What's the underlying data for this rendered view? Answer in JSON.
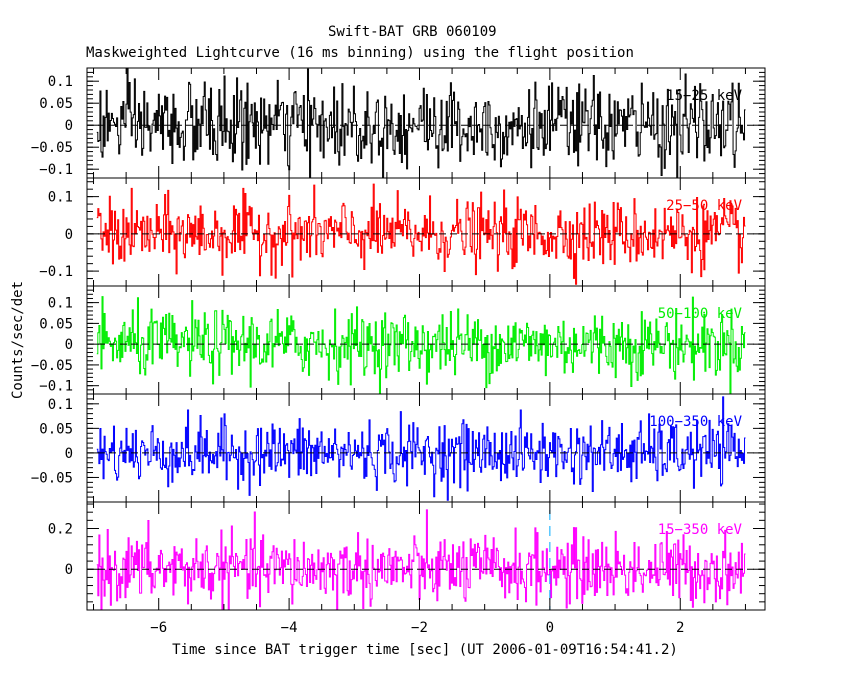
{
  "chart_data": {
    "type": "line",
    "title": "Swift-BAT GRB 060109",
    "subtitle": "Maskweighted Lightcurve (16 ms binning) using the flight position",
    "xlabel": "Time since BAT trigger time [sec] (UT 2006-01-09T16:54:41.2)",
    "ylabel": "Counts/sec/det",
    "xlim": [
      -7.1,
      3.3
    ],
    "xticks": [
      -6,
      -4,
      -2,
      0,
      2
    ],
    "xtick_labels": [
      "−6",
      "−4",
      "−2",
      "0",
      "2"
    ],
    "trigger_marker_x": 0,
    "bin_width_sec": 0.016,
    "panels": [
      {
        "band": "15−25 keV",
        "color": "#000000",
        "ylim": [
          -0.12,
          0.13
        ],
        "yticks": [
          0.1,
          0.05,
          0,
          -0.05,
          -0.1
        ],
        "ytick_labels": [
          "0.1",
          "0.05",
          "0",
          "−0.05",
          "−0.1"
        ],
        "noise_sd": 0.048,
        "signal": "flat noise around 0"
      },
      {
        "band": "25−50 keV",
        "color": "#ff0000",
        "ylim": [
          -0.14,
          0.15
        ],
        "yticks": [
          0.1,
          0,
          -0.1
        ],
        "ytick_labels": [
          "0.1",
          "0",
          "−0.1"
        ],
        "noise_sd": 0.045,
        "signal": "flat noise around 0"
      },
      {
        "band": "50−100 keV",
        "color": "#00ee00",
        "ylim": [
          -0.12,
          0.14
        ],
        "yticks": [
          0.1,
          0.05,
          0,
          -0.05,
          -0.1
        ],
        "ytick_labels": [
          "0.1",
          "0.05",
          "0",
          "−0.05",
          "−0.1"
        ],
        "noise_sd": 0.04,
        "signal": "flat noise around 0"
      },
      {
        "band": "100−350 keV",
        "color": "#0000ff",
        "ylim": [
          -0.1,
          0.12
        ],
        "yticks": [
          0.1,
          0.05,
          0,
          -0.05
        ],
        "ytick_labels": [
          "0.1",
          "0.05",
          "0",
          "−0.05"
        ],
        "noise_sd": 0.032,
        "signal": "flat noise around 0"
      },
      {
        "band": "15−350 keV",
        "color": "#ff00ff",
        "ylim": [
          -0.2,
          0.33
        ],
        "yticks": [
          0.2,
          0
        ],
        "ytick_labels": [
          "0.2",
          "0"
        ],
        "noise_sd": 0.085,
        "signal": "flat noise around 0"
      }
    ],
    "zero_line": true,
    "grid": false
  }
}
